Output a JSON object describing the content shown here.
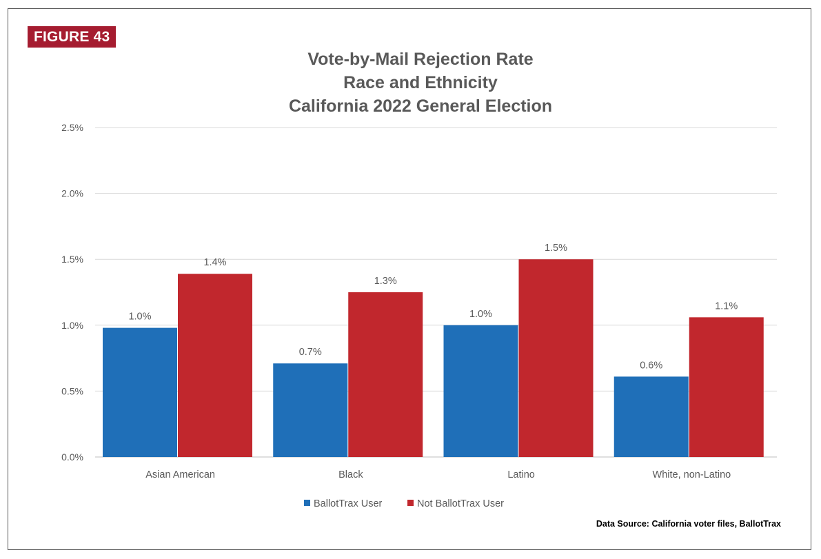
{
  "figure_label": "FIGURE 43",
  "source_text": "Data Source: California voter files, BallotTrax",
  "colors": {
    "badge": "#a51c30",
    "series1": "#1f6fb8",
    "series2": "#c1272d",
    "grid": "#d9d9d9",
    "text": "#595959"
  },
  "chart_data": {
    "type": "bar",
    "title_lines": [
      "Vote-by-Mail Rejection Rate",
      "Race and Ethnicity",
      "California 2022 General Election"
    ],
    "categories": [
      "Asian American",
      "Black",
      "Latino",
      "White, non-Latino"
    ],
    "series": [
      {
        "name": "BallotTrax User",
        "values": [
          0.98,
          0.71,
          1.0,
          0.61
        ],
        "labels": [
          "1.0%",
          "0.7%",
          "1.0%",
          "0.6%"
        ]
      },
      {
        "name": "Not BallotTrax User",
        "values": [
          1.39,
          1.25,
          1.5,
          1.06
        ],
        "labels": [
          "1.4%",
          "1.3%",
          "1.5%",
          "1.1%"
        ]
      }
    ],
    "y_ticks": [
      "0.0%",
      "0.5%",
      "1.0%",
      "1.5%",
      "2.0%",
      "2.5%"
    ],
    "ylim": [
      0,
      2.5
    ],
    "grid": true,
    "legend_position": "bottom-center"
  }
}
